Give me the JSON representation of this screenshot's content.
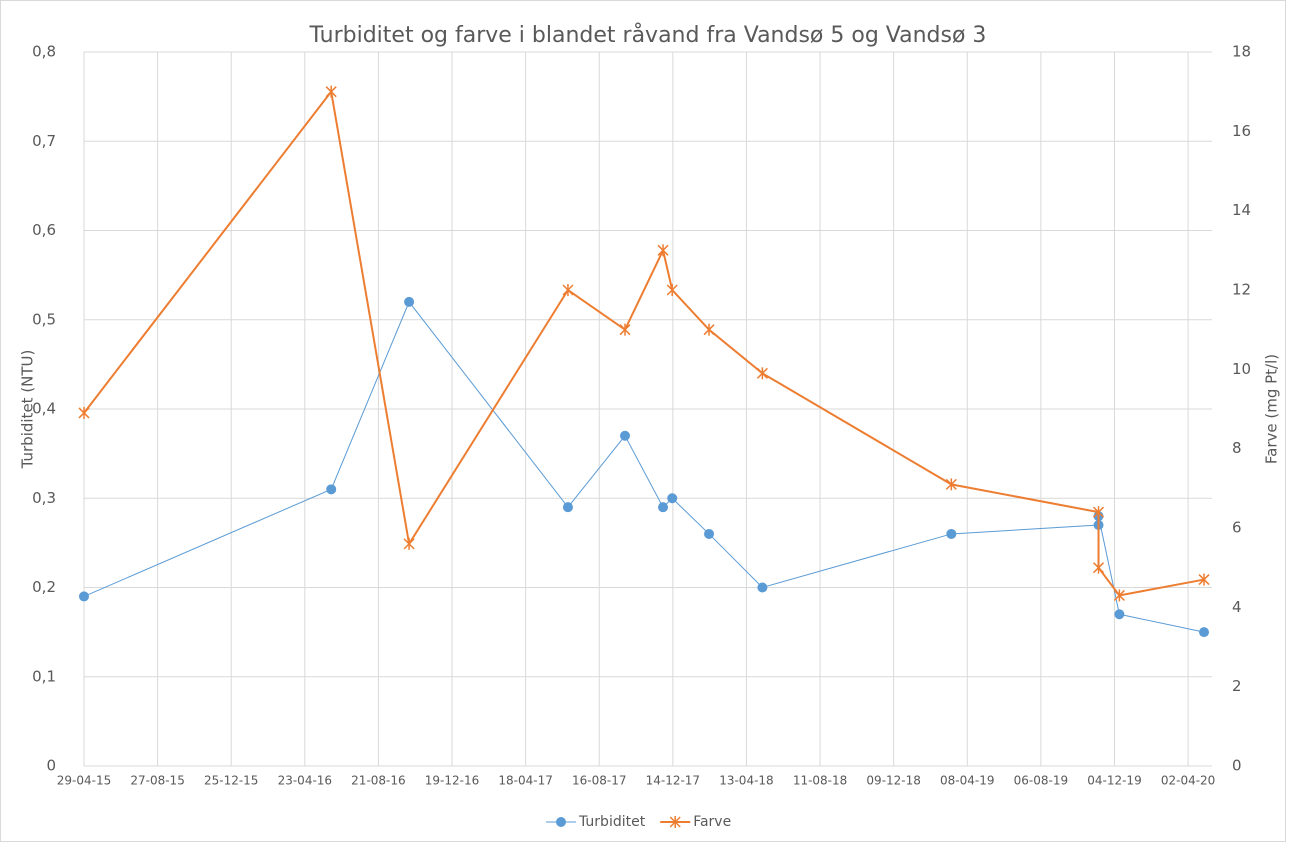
{
  "chart_data": {
    "type": "line",
    "title": "Turbiditet og farve i blandet råvand fra Vandsø 5 og Vandsø 3",
    "y_label": "Turbiditet (NTU)",
    "y2_label": "Farve  (mg Pt/l)",
    "x": [
      "29-04-15",
      "05-06-16",
      "10-10-16",
      "26-06-17",
      "27-09-17",
      "28-11-17",
      "13-12-17",
      "11-02-18",
      "09-05-18",
      "13-03-19",
      "08-11-19",
      "08-11-19",
      "12-12-19",
      "28-04-20"
    ],
    "xlim": [
      "29-04-15",
      "11-05-20"
    ],
    "xticks": [
      "29-04-15",
      "27-08-15",
      "25-12-15",
      "23-04-16",
      "21-08-16",
      "19-12-16",
      "18-04-17",
      "16-08-17",
      "14-12-17",
      "13-04-18",
      "11-08-18",
      "09-12-18",
      "08-04-19",
      "06-08-19",
      "04-12-19",
      "02-04-20"
    ],
    "ylim": [
      0,
      0.8
    ],
    "yticks": [
      {
        "value": 0,
        "label": "0"
      },
      {
        "value": 0.1,
        "label": "0,1"
      },
      {
        "value": 0.2,
        "label": "0,2"
      },
      {
        "value": 0.3,
        "label": "0,3"
      },
      {
        "value": 0.4,
        "label": "0,4"
      },
      {
        "value": 0.5,
        "label": "0,5"
      },
      {
        "value": 0.6,
        "label": "0,6"
      },
      {
        "value": 0.7,
        "label": "0,7"
      },
      {
        "value": 0.8,
        "label": "0,8"
      }
    ],
    "y2lim": [
      0,
      18
    ],
    "y2ticks": [
      0,
      2,
      4,
      6,
      8,
      10,
      12,
      14,
      16,
      18
    ],
    "grid": true,
    "legend": "bottom",
    "series": [
      {
        "name": "Turbiditet",
        "color": "#5b9bd5",
        "marker": "circle",
        "values": [
          0.19,
          0.31,
          0.52,
          0.29,
          0.37,
          0.29,
          0.3,
          0.26,
          0.2,
          0.26,
          0.27,
          0.28,
          0.17,
          0.15
        ]
      },
      {
        "name": "Farve",
        "color": "#ed7d31",
        "marker": "star",
        "axis": "y2",
        "values": [
          8.9,
          17,
          5.6,
          12,
          11,
          13,
          12,
          11,
          9.9,
          7.1,
          6.4,
          5.0,
          4.3,
          4.7
        ]
      }
    ]
  }
}
